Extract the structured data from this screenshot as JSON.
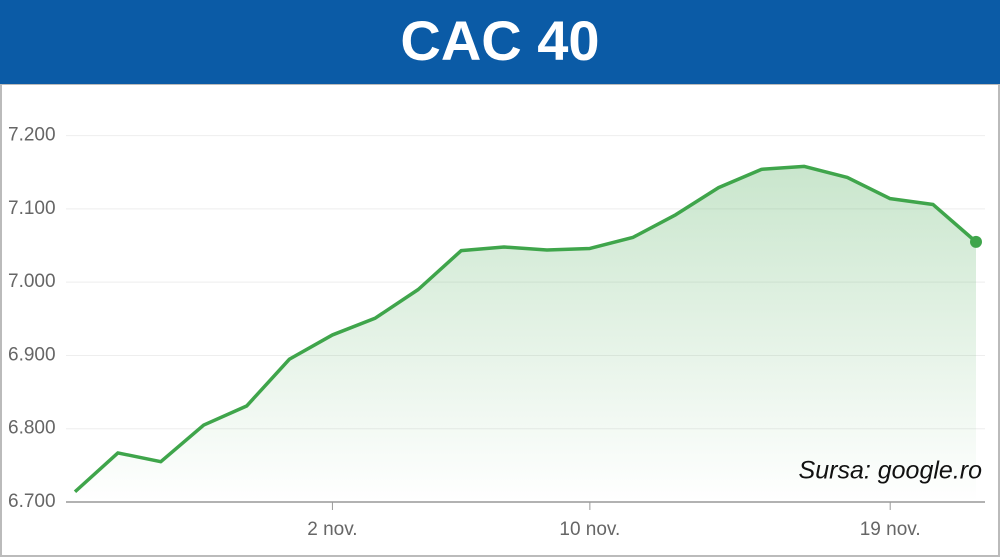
{
  "chart_data": {
    "type": "line",
    "title": "CAC 40",
    "source": "Sursa: google.ro",
    "categories": [
      null,
      null,
      null,
      null,
      null,
      null,
      "2 nov.",
      null,
      null,
      null,
      null,
      null,
      "10 nov.",
      null,
      null,
      null,
      null,
      null,
      null,
      "19 nov.",
      null,
      null
    ],
    "series": [
      {
        "name": "CAC 40",
        "color": "#3fa54b",
        "values": [
          6714,
          6767,
          6755,
          6805,
          6831,
          6895,
          6928,
          6951,
          6990,
          7043,
          7048,
          7044,
          7046,
          7061,
          7092,
          7129,
          7154,
          7158,
          7143,
          7114,
          7106,
          7055
        ]
      }
    ],
    "ylim": [
      6700,
      7250
    ],
    "yticks": [
      {
        "value": 6700,
        "label": "6.700"
      },
      {
        "value": 6800,
        "label": "6.800"
      },
      {
        "value": 6900,
        "label": "6.900"
      },
      {
        "value": 7000,
        "label": "7.000"
      },
      {
        "value": 7100,
        "label": "7.100"
      },
      {
        "value": 7200,
        "label": "7.200"
      }
    ],
    "grid": true
  }
}
